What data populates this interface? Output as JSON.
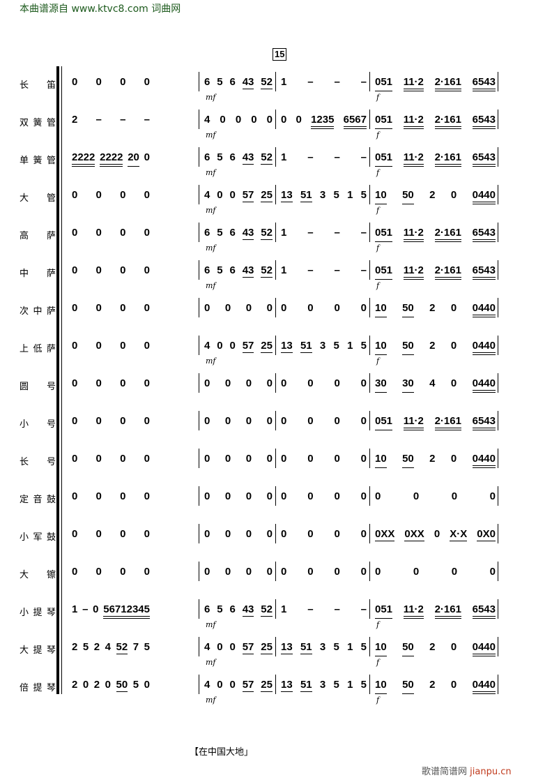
{
  "watermark_top": "本曲谱源自 www.ktvc8.com 词曲网",
  "rehearsal_mark": "15",
  "rows": [
    {
      "label": "长 笛",
      "measures": [
        "0 0 0 0",
        "6 5 6 43 52",
        "1 – – –",
        "051 11·2 2·161 6543"
      ],
      "dynamics": [
        "",
        "mf",
        "",
        "f"
      ]
    },
    {
      "label": "双簧管",
      "measures": [
        "2 – – –",
        "4 0 0 0 0",
        "0 0 1235 6567",
        "051 11·2 2·161 6543"
      ],
      "dynamics": [
        "",
        "mf",
        "",
        "f"
      ]
    },
    {
      "label": "单簧管",
      "measures": [
        "2222 2222 20 0",
        "6 5 6 43 52",
        "1 – – –",
        "051 11·2 2·161 6543"
      ],
      "dynamics": [
        "",
        "mf",
        "",
        "f"
      ]
    },
    {
      "label": "大 管",
      "measures": [
        "0 0 0 0",
        "4 0 0 57 25",
        "13 51 3 5 1 5",
        "10 50 2 0 0440"
      ],
      "dynamics": [
        "",
        "mf",
        "",
        "f"
      ]
    },
    {
      "label": "高 萨",
      "measures": [
        "0 0 0 0",
        "6 5 6 43 52",
        "1 – – –",
        "051 11·2 2·161 6543"
      ],
      "dynamics": [
        "",
        "mf",
        "",
        "f"
      ]
    },
    {
      "label": "中 萨",
      "measures": [
        "0 0 0 0",
        "6 5 6 43 52",
        "1 – – –",
        "051 11·2 2·161 6543"
      ],
      "dynamics": [
        "",
        "mf",
        "",
        "f"
      ]
    },
    {
      "label": "次中萨",
      "measures": [
        "0 0 0 0",
        "0 0 0 0",
        "0 0 0 0",
        "10 50 2 0 0440"
      ],
      "dynamics": [
        "",
        "",
        "",
        ""
      ]
    },
    {
      "label": "上低萨",
      "measures": [
        "0 0 0 0",
        "4 0 0 57 25",
        "13 51 3 5 1 5",
        "10 50 2 0 0440"
      ],
      "dynamics": [
        "",
        "mf",
        "",
        "f"
      ]
    },
    {
      "label": "圆 号",
      "measures": [
        "0 0 0 0",
        "0 0 0 0",
        "0 0 0 0",
        "30 30 4 0 0440"
      ],
      "dynamics": [
        "",
        "",
        "",
        ""
      ]
    },
    {
      "label": "小 号",
      "measures": [
        "0 0 0 0",
        "0 0 0 0",
        "0 0 0 0",
        "051 11·2 2·161 6543"
      ],
      "dynamics": [
        "",
        "",
        "",
        ""
      ]
    },
    {
      "label": "长 号",
      "measures": [
        "0 0 0 0",
        "0 0 0 0",
        "0 0 0 0",
        "10 50 2 0 0440"
      ],
      "dynamics": [
        "",
        "",
        "",
        ""
      ]
    },
    {
      "label": "定音鼓",
      "measures": [
        "0 0 0 0",
        "0 0 0 0",
        "0 0 0 0",
        "0 0 0 0"
      ],
      "dynamics": [
        "",
        "",
        "",
        ""
      ]
    },
    {
      "label": "小军鼓",
      "measures": [
        "0 0 0 0",
        "0 0 0 0",
        "0 0 0 0",
        "0XX 0XX 0 X·X 0X0"
      ],
      "dynamics": [
        "",
        "",
        "",
        ""
      ]
    },
    {
      "label": "大 镲",
      "measures": [
        "0 0 0 0",
        "0 0 0 0",
        "0 0 0 0",
        "0 0 0 0"
      ],
      "dynamics": [
        "",
        "",
        "",
        ""
      ]
    },
    {
      "label": "小提琴",
      "measures": [
        "1 – 0 56712345",
        "6 5 6 43 52",
        "1 – – –",
        "051 11·2 2·161 6543"
      ],
      "dynamics": [
        "",
        "mf",
        "",
        "f"
      ]
    },
    {
      "label": "大提琴",
      "measures": [
        "2 5 2 4 52 7 5",
        "4 0 0 57 25",
        "13 51 3 5 1 5",
        "10 50 2 0 0440"
      ],
      "dynamics": [
        "",
        "mf",
        "",
        "f"
      ]
    },
    {
      "label": "倍提琴",
      "measures": [
        "2 0 2 0 50 5 0",
        "4 0 0 57 25",
        "13 51 3 5 1 5",
        "10 50 2 0 0440"
      ],
      "dynamics": [
        "",
        "mf",
        "",
        "f"
      ]
    }
  ],
  "footer": "【在中国大地」",
  "watermark_bottom": {
    "cn": "歌谱简谱网",
    "url": "jianpu.cn"
  }
}
